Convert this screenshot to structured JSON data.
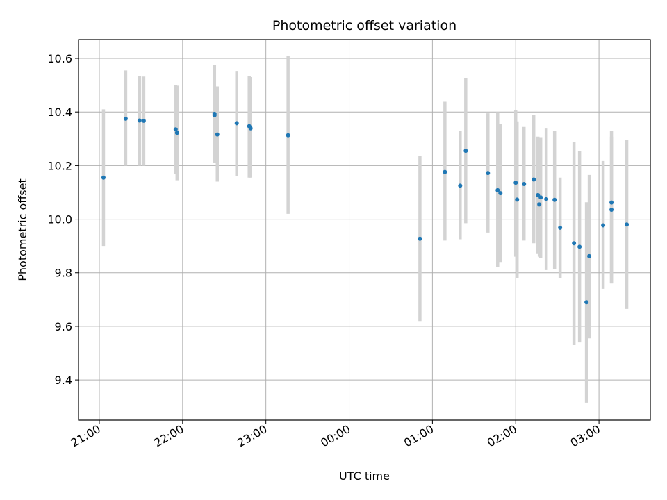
{
  "chart_data": {
    "type": "scatter",
    "title": "Photometric offset variation",
    "xlabel": "UTC time",
    "ylabel": "Photometric offset",
    "x_axis": "time (UTC, evening-to-morning across midnight)",
    "xlim": [
      "20:45",
      "03:37"
    ],
    "ylim": [
      9.25,
      10.67
    ],
    "x_ticks": [
      "21:00",
      "22:00",
      "23:00",
      "00:00",
      "01:00",
      "02:00",
      "03:00"
    ],
    "y_ticks": [
      9.4,
      9.6,
      9.8,
      10.0,
      10.2,
      10.4,
      10.6
    ],
    "grid": true,
    "point_color": "#1f77b4",
    "errorbar_color": "#d3d3d3",
    "points": [
      {
        "t": "21:03",
        "y": 10.155,
        "lo": 9.9,
        "hi": 10.41
      },
      {
        "t": "21:19",
        "y": 10.375,
        "lo": 10.2,
        "hi": 10.555
      },
      {
        "t": "21:29",
        "y": 10.368,
        "lo": 10.2,
        "hi": 10.535
      },
      {
        "t": "21:32",
        "y": 10.367,
        "lo": 10.2,
        "hi": 10.532
      },
      {
        "t": "21:55",
        "y": 10.335,
        "lo": 10.17,
        "hi": 10.5
      },
      {
        "t": "21:56",
        "y": 10.322,
        "lo": 10.145,
        "hi": 10.498
      },
      {
        "t": "22:23",
        "y": 10.393,
        "lo": 10.21,
        "hi": 10.575
      },
      {
        "t": "22:23",
        "y": 10.388,
        "lo": 10.21,
        "hi": 10.575
      },
      {
        "t": "22:25",
        "y": 10.316,
        "lo": 10.14,
        "hi": 10.495
      },
      {
        "t": "22:39",
        "y": 10.358,
        "lo": 10.16,
        "hi": 10.553
      },
      {
        "t": "22:48",
        "y": 10.347,
        "lo": 10.155,
        "hi": 10.535
      },
      {
        "t": "22:49",
        "y": 10.339,
        "lo": 10.155,
        "hi": 10.53
      },
      {
        "t": "23:16",
        "y": 10.313,
        "lo": 10.02,
        "hi": 10.608
      },
      {
        "t": "00:51",
        "y": 9.927,
        "lo": 9.62,
        "hi": 10.235
      },
      {
        "t": "01:09",
        "y": 10.176,
        "lo": 9.92,
        "hi": 10.438
      },
      {
        "t": "01:20",
        "y": 10.125,
        "lo": 9.925,
        "hi": 10.328
      },
      {
        "t": "01:24",
        "y": 10.255,
        "lo": 9.985,
        "hi": 10.527
      },
      {
        "t": "01:40",
        "y": 10.172,
        "lo": 9.95,
        "hi": 10.395
      },
      {
        "t": "01:47",
        "y": 10.108,
        "lo": 9.82,
        "hi": 10.4
      },
      {
        "t": "01:49",
        "y": 10.097,
        "lo": 9.84,
        "hi": 10.355
      },
      {
        "t": "02:00",
        "y": 10.136,
        "lo": 9.86,
        "hi": 10.407
      },
      {
        "t": "02:01",
        "y": 10.073,
        "lo": 9.78,
        "hi": 10.365
      },
      {
        "t": "02:06",
        "y": 10.131,
        "lo": 9.92,
        "hi": 10.344
      },
      {
        "t": "02:13",
        "y": 10.148,
        "lo": 9.91,
        "hi": 10.388
      },
      {
        "t": "02:16",
        "y": 10.09,
        "lo": 9.87,
        "hi": 10.308
      },
      {
        "t": "02:17",
        "y": 10.055,
        "lo": 9.86,
        "hi": 10.306
      },
      {
        "t": "02:18",
        "y": 10.081,
        "lo": 9.855,
        "hi": 10.306
      },
      {
        "t": "02:22",
        "y": 10.075,
        "lo": 9.81,
        "hi": 10.338
      },
      {
        "t": "02:28",
        "y": 10.072,
        "lo": 9.815,
        "hi": 10.33
      },
      {
        "t": "02:32",
        "y": 9.968,
        "lo": 9.78,
        "hi": 10.155
      },
      {
        "t": "02:42",
        "y": 9.91,
        "lo": 9.53,
        "hi": 10.287
      },
      {
        "t": "02:46",
        "y": 9.897,
        "lo": 9.54,
        "hi": 10.254
      },
      {
        "t": "02:51",
        "y": 9.69,
        "lo": 9.315,
        "hi": 10.063
      },
      {
        "t": "02:53",
        "y": 9.862,
        "lo": 9.555,
        "hi": 10.165
      },
      {
        "t": "03:03",
        "y": 9.977,
        "lo": 9.74,
        "hi": 10.217
      },
      {
        "t": "03:09",
        "y": 10.062,
        "lo": 9.76,
        "hi": 10.328
      },
      {
        "t": "03:09",
        "y": 10.035,
        "lo": 9.76,
        "hi": 10.308
      },
      {
        "t": "03:20",
        "y": 9.98,
        "lo": 9.665,
        "hi": 10.295
      }
    ]
  }
}
